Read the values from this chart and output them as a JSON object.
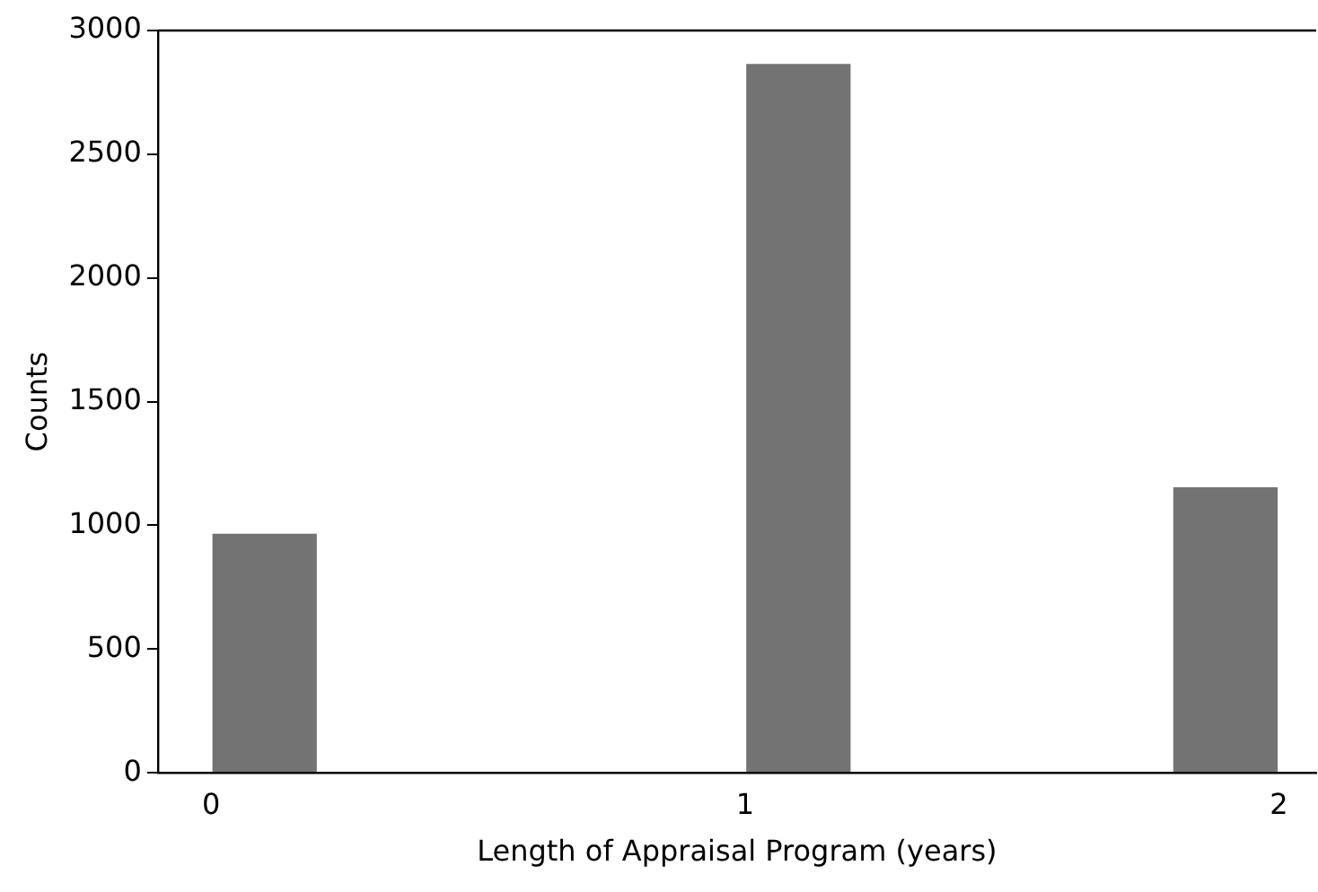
{
  "chart_data": {
    "type": "histogram",
    "xlabel": "Length of Appraisal Program (years)",
    "ylabel": "Counts",
    "bins": [
      0,
      0.2,
      0.4,
      0.6,
      0.8,
      1.0,
      1.2,
      1.4,
      1.6,
      1.8,
      2.0
    ],
    "values": [
      971,
      0,
      0,
      0,
      0,
      2870,
      0,
      0,
      0,
      1159
    ],
    "color": "#737373",
    "xlim": [
      -0.1,
      2.07
    ],
    "xticks": [
      0,
      1,
      2
    ],
    "ylim": [
      0,
      3000
    ],
    "yticks": [
      0,
      500,
      1000,
      1500,
      2000,
      2500,
      3000
    ],
    "grid": false,
    "legend": false
  }
}
